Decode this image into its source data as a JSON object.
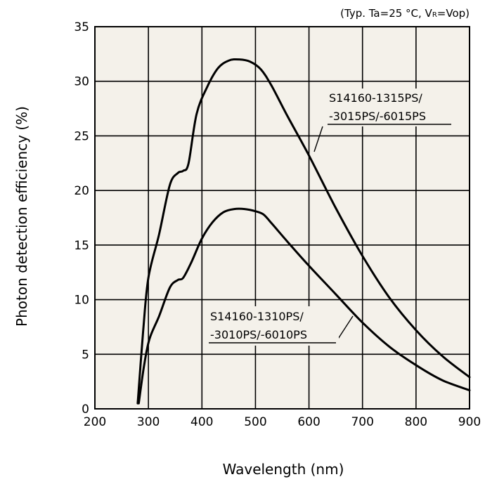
{
  "chart_data": {
    "type": "line",
    "condition_note": {
      "prefix": "(Typ. Ta=25 °C, V",
      "subscript": "R",
      "suffix": "=Vop)"
    },
    "xlabel": "Wavelength (nm)",
    "ylabel": "Photon detection efficiency (%)",
    "xlim": [
      200,
      900
    ],
    "ylim": [
      0,
      35
    ],
    "xticks": [
      200,
      300,
      400,
      500,
      600,
      700,
      800,
      900
    ],
    "yticks": [
      0,
      5,
      10,
      15,
      20,
      25,
      30,
      35
    ],
    "grid": true,
    "plot_background": "#f4f1ea",
    "line_color": "#000000",
    "series": [
      {
        "label_lines": [
          "S14160-1315PS/",
          "-3015PS/-6015PS"
        ],
        "points": [
          [
            280,
            0.5
          ],
          [
            290,
            7
          ],
          [
            300,
            12
          ],
          [
            320,
            16
          ],
          [
            340,
            20.5
          ],
          [
            355,
            21.6
          ],
          [
            365,
            21.8
          ],
          [
            375,
            22.5
          ],
          [
            390,
            27
          ],
          [
            410,
            29.5
          ],
          [
            430,
            31.2
          ],
          [
            450,
            31.9
          ],
          [
            470,
            32
          ],
          [
            490,
            31.8
          ],
          [
            510,
            31.1
          ],
          [
            530,
            29.6
          ],
          [
            560,
            26.8
          ],
          [
            600,
            23.2
          ],
          [
            650,
            18.4
          ],
          [
            700,
            14.0
          ],
          [
            750,
            10.2
          ],
          [
            800,
            7.2
          ],
          [
            850,
            4.8
          ],
          [
            900,
            2.9
          ]
        ]
      },
      {
        "label_lines": [
          "S14160-1310PS/",
          "-3010PS/-6010PS"
        ],
        "points": [
          [
            282,
            0.5
          ],
          [
            292,
            4
          ],
          [
            302,
            6.4
          ],
          [
            320,
            8.5
          ],
          [
            340,
            11.1
          ],
          [
            355,
            11.8
          ],
          [
            365,
            12.0
          ],
          [
            380,
            13.4
          ],
          [
            400,
            15.6
          ],
          [
            420,
            17.1
          ],
          [
            440,
            18.0
          ],
          [
            460,
            18.3
          ],
          [
            480,
            18.3
          ],
          [
            500,
            18.1
          ],
          [
            515,
            17.8
          ],
          [
            530,
            17.0
          ],
          [
            560,
            15.3
          ],
          [
            600,
            13.1
          ],
          [
            650,
            10.5
          ],
          [
            700,
            7.9
          ],
          [
            750,
            5.7
          ],
          [
            800,
            4.0
          ],
          [
            850,
            2.6
          ],
          [
            900,
            1.7
          ]
        ]
      }
    ]
  }
}
